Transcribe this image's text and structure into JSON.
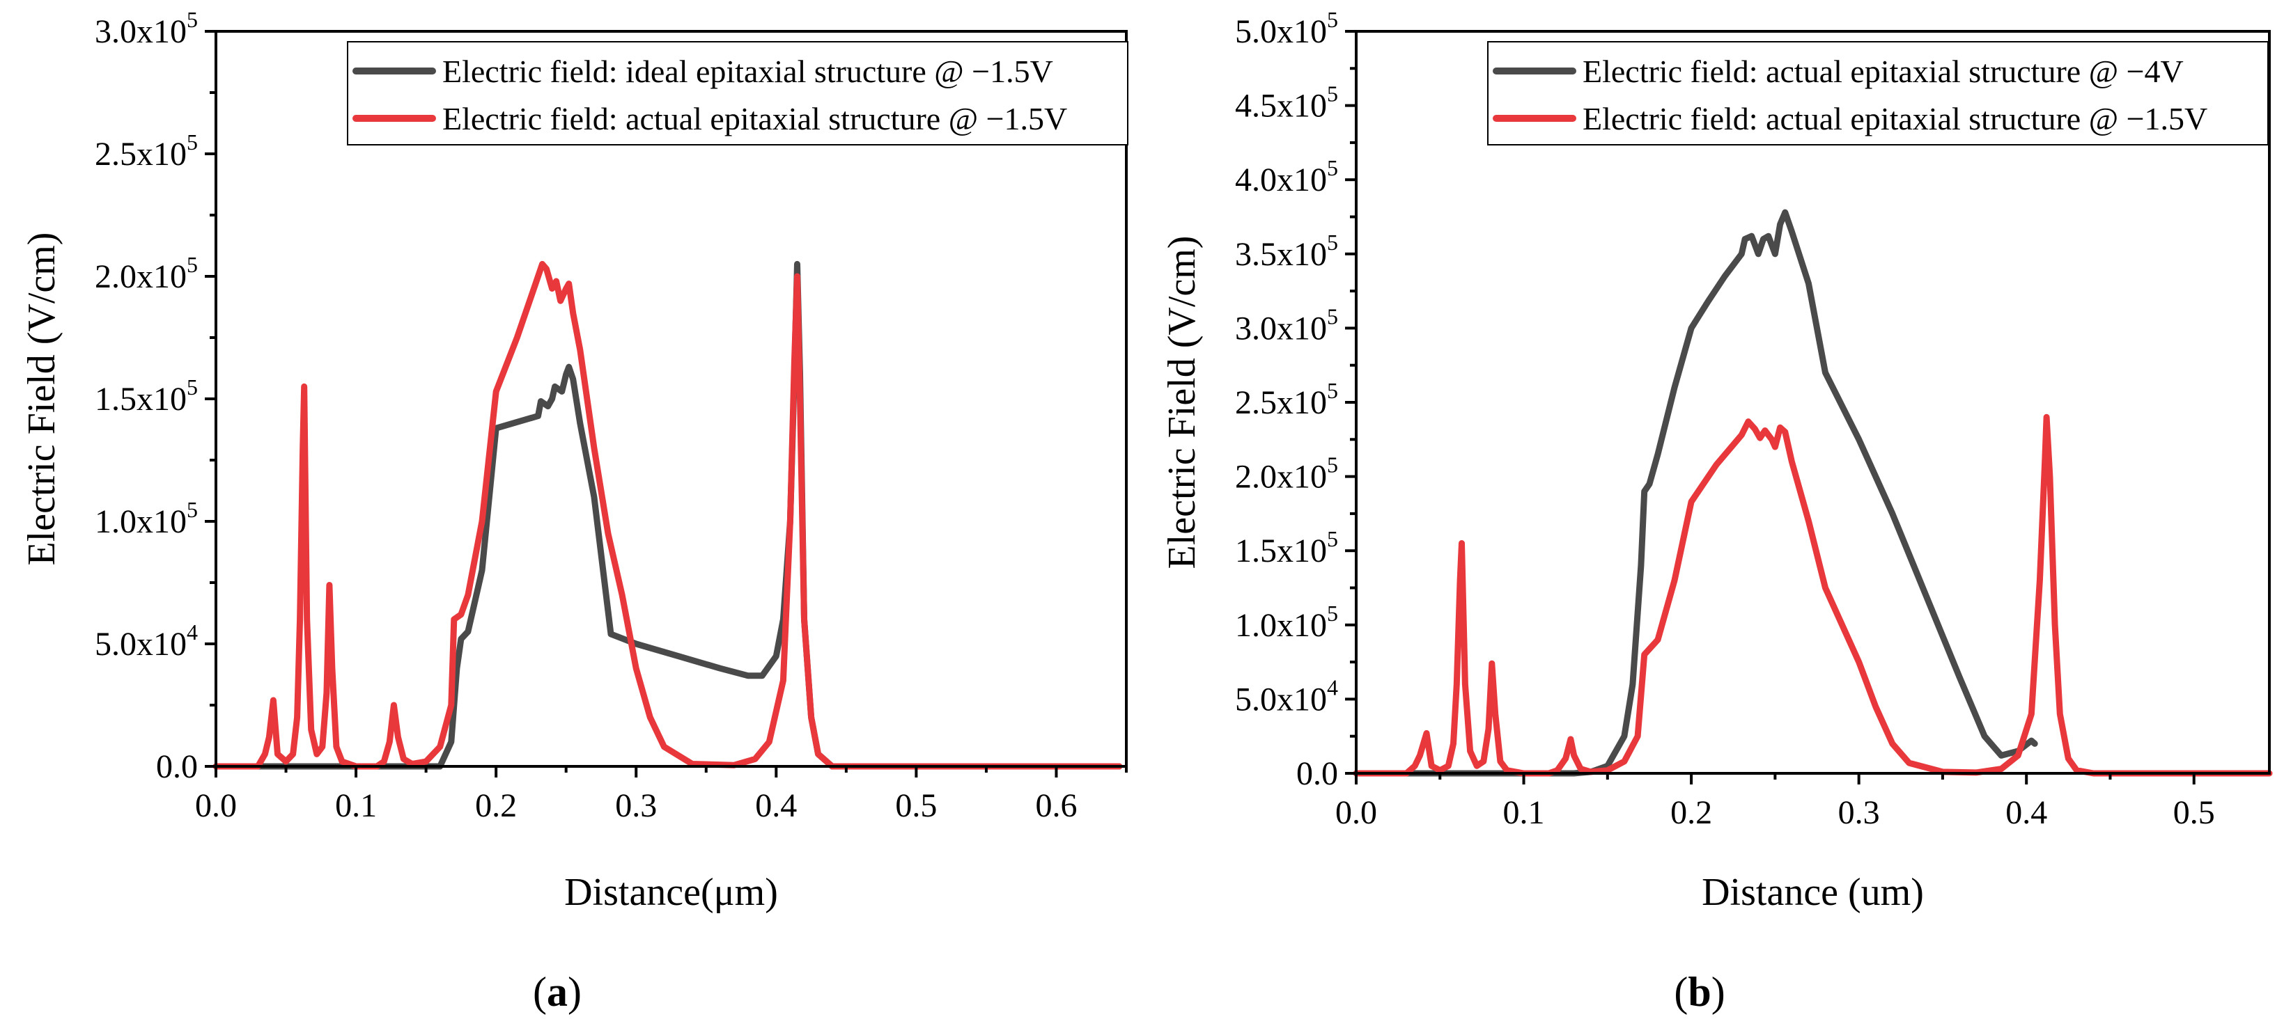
{
  "colors": {
    "dark_series": "#4a4a4a",
    "red_series": "#e8383c",
    "axis": "#000000"
  },
  "chart_data": [
    {
      "panel": "(a)",
      "type": "line",
      "title": "",
      "xlabel": "Distance(μm)",
      "ylabel": "Electric Field (V/cm)",
      "xlim": [
        0,
        0.65
      ],
      "ylim": [
        0,
        300000
      ],
      "xticks": [
        0.0,
        0.1,
        0.2,
        0.3,
        0.4,
        0.5,
        0.6
      ],
      "xtick_labels": [
        "0.0",
        "0.1",
        "0.2",
        "0.3",
        "0.4",
        "0.5",
        "0.6"
      ],
      "yticks": [
        {
          "value": 0,
          "mantissa": "0.0",
          "exponent": ""
        },
        {
          "value": 50000,
          "mantissa": "5.0x10",
          "exponent": "4"
        },
        {
          "value": 100000,
          "mantissa": "1.0x10",
          "exponent": "5"
        },
        {
          "value": 150000,
          "mantissa": "1.5x10",
          "exponent": "5"
        },
        {
          "value": 200000,
          "mantissa": "2.0x10",
          "exponent": "5"
        },
        {
          "value": 250000,
          "mantissa": "2.5x10",
          "exponent": "5"
        },
        {
          "value": 300000,
          "mantissa": "3.0x10",
          "exponent": "5"
        }
      ],
      "grid": false,
      "legend_position": "top-right",
      "series": [
        {
          "name": "Electric field: ideal epitaxial structure @ −1.5V",
          "color": "#4a4a4a",
          "points": [
            [
              0,
              0
            ],
            [
              0.16,
              0
            ],
            [
              0.168,
              10000
            ],
            [
              0.172,
              40000
            ],
            [
              0.175,
              52000
            ],
            [
              0.18,
              55000
            ],
            [
              0.19,
              80000
            ],
            [
              0.2,
              138000
            ],
            [
              0.23,
              143000
            ],
            [
              0.232,
              149000
            ],
            [
              0.237,
              147000
            ],
            [
              0.24,
              150000
            ],
            [
              0.242,
              155000
            ],
            [
              0.247,
              153000
            ],
            [
              0.25,
              160000
            ],
            [
              0.252,
              163000
            ],
            [
              0.255,
              158000
            ],
            [
              0.26,
              140000
            ],
            [
              0.27,
              110000
            ],
            [
              0.282,
              54000
            ],
            [
              0.3,
              50000
            ],
            [
              0.33,
              45000
            ],
            [
              0.36,
              40000
            ],
            [
              0.38,
              37000
            ],
            [
              0.39,
              37000
            ],
            [
              0.4,
              45000
            ],
            [
              0.405,
              60000
            ],
            [
              0.41,
              100000
            ],
            [
              0.413,
              160000
            ],
            [
              0.415,
              205000
            ],
            [
              0.417,
              160000
            ],
            [
              0.42,
              60000
            ],
            [
              0.425,
              20000
            ],
            [
              0.43,
              5000
            ],
            [
              0.44,
              0
            ],
            [
              0.645,
              0
            ]
          ]
        },
        {
          "name": "Electric field: actual epitaxial structure @ −1.5V",
          "color": "#e8383c",
          "points": [
            [
              0,
              0
            ],
            [
              0.03,
              0
            ],
            [
              0.035,
              5000
            ],
            [
              0.038,
              12000
            ],
            [
              0.041,
              27000
            ],
            [
              0.044,
              5000
            ],
            [
              0.05,
              2000
            ],
            [
              0.055,
              5000
            ],
            [
              0.058,
              20000
            ],
            [
              0.06,
              60000
            ],
            [
              0.062,
              130000
            ],
            [
              0.063,
              155000
            ],
            [
              0.065,
              60000
            ],
            [
              0.068,
              15000
            ],
            [
              0.072,
              5000
            ],
            [
              0.076,
              8000
            ],
            [
              0.079,
              30000
            ],
            [
              0.081,
              74000
            ],
            [
              0.083,
              40000
            ],
            [
              0.086,
              8000
            ],
            [
              0.09,
              2000
            ],
            [
              0.1,
              0
            ],
            [
              0.115,
              0
            ],
            [
              0.12,
              2000
            ],
            [
              0.124,
              10000
            ],
            [
              0.127,
              25000
            ],
            [
              0.13,
              12000
            ],
            [
              0.134,
              3000
            ],
            [
              0.14,
              1000
            ],
            [
              0.15,
              2000
            ],
            [
              0.16,
              8000
            ],
            [
              0.168,
              25000
            ],
            [
              0.17,
              60000
            ],
            [
              0.175,
              62000
            ],
            [
              0.18,
              70000
            ],
            [
              0.19,
              100000
            ],
            [
              0.2,
              153000
            ],
            [
              0.215,
              175000
            ],
            [
              0.23,
              200000
            ],
            [
              0.233,
              205000
            ],
            [
              0.236,
              203000
            ],
            [
              0.24,
              195000
            ],
            [
              0.243,
              198000
            ],
            [
              0.246,
              190000
            ],
            [
              0.25,
              195000
            ],
            [
              0.252,
              197000
            ],
            [
              0.255,
              185000
            ],
            [
              0.26,
              170000
            ],
            [
              0.27,
              130000
            ],
            [
              0.28,
              95000
            ],
            [
              0.29,
              70000
            ],
            [
              0.3,
              40000
            ],
            [
              0.31,
              20000
            ],
            [
              0.32,
              8000
            ],
            [
              0.34,
              1000
            ],
            [
              0.37,
              500
            ],
            [
              0.385,
              3000
            ],
            [
              0.395,
              10000
            ],
            [
              0.405,
              35000
            ],
            [
              0.41,
              100000
            ],
            [
              0.413,
              165000
            ],
            [
              0.415,
              200000
            ],
            [
              0.417,
              150000
            ],
            [
              0.42,
              60000
            ],
            [
              0.425,
              20000
            ],
            [
              0.43,
              5000
            ],
            [
              0.44,
              0
            ],
            [
              0.645,
              0
            ]
          ]
        }
      ]
    },
    {
      "panel": "(b)",
      "type": "line",
      "title": "",
      "xlabel": "Distance (um)",
      "ylabel": "Electric Field (V/cm)",
      "xlim": [
        0,
        0.545
      ],
      "ylim": [
        0,
        500000
      ],
      "xticks": [
        0.0,
        0.1,
        0.2,
        0.3,
        0.4,
        0.5
      ],
      "xtick_labels": [
        "0.0",
        "0.1",
        "0.2",
        "0.3",
        "0.4",
        "0.5"
      ],
      "yticks": [
        {
          "value": 0,
          "mantissa": "0.0",
          "exponent": ""
        },
        {
          "value": 50000,
          "mantissa": "5.0x10",
          "exponent": "4"
        },
        {
          "value": 100000,
          "mantissa": "1.0x10",
          "exponent": "5"
        },
        {
          "value": 150000,
          "mantissa": "1.5x10",
          "exponent": "5"
        },
        {
          "value": 200000,
          "mantissa": "2.0x10",
          "exponent": "5"
        },
        {
          "value": 250000,
          "mantissa": "2.5x10",
          "exponent": "5"
        },
        {
          "value": 300000,
          "mantissa": "3.0x10",
          "exponent": "5"
        },
        {
          "value": 350000,
          "mantissa": "3.5x10",
          "exponent": "5"
        },
        {
          "value": 400000,
          "mantissa": "4.0x10",
          "exponent": "5"
        },
        {
          "value": 450000,
          "mantissa": "4.5x10",
          "exponent": "5"
        },
        {
          "value": 500000,
          "mantissa": "5.0x10",
          "exponent": "5"
        }
      ],
      "grid": false,
      "legend_position": "top-right",
      "series": [
        {
          "name": "Electric field: actual epitaxial structure @ −4V",
          "color": "#4a4a4a",
          "points": [
            [
              0,
              0
            ],
            [
              0.13,
              0
            ],
            [
              0.14,
              1000
            ],
            [
              0.15,
              5000
            ],
            [
              0.16,
              25000
            ],
            [
              0.165,
              60000
            ],
            [
              0.17,
              140000
            ],
            [
              0.172,
              190000
            ],
            [
              0.175,
              195000
            ],
            [
              0.18,
              215000
            ],
            [
              0.19,
              260000
            ],
            [
              0.2,
              300000
            ],
            [
              0.21,
              318000
            ],
            [
              0.22,
              335000
            ],
            [
              0.23,
              350000
            ],
            [
              0.232,
              360000
            ],
            [
              0.236,
              362000
            ],
            [
              0.24,
              350000
            ],
            [
              0.243,
              360000
            ],
            [
              0.246,
              362000
            ],
            [
              0.25,
              350000
            ],
            [
              0.253,
              370000
            ],
            [
              0.256,
              378000
            ],
            [
              0.26,
              365000
            ],
            [
              0.27,
              330000
            ],
            [
              0.28,
              270000
            ],
            [
              0.3,
              225000
            ],
            [
              0.32,
              175000
            ],
            [
              0.34,
              120000
            ],
            [
              0.36,
              65000
            ],
            [
              0.375,
              25000
            ],
            [
              0.385,
              12000
            ],
            [
              0.395,
              15000
            ],
            [
              0.403,
              22000
            ],
            [
              0.405,
              20000
            ]
          ]
        },
        {
          "name": "Electric field: actual epitaxial structure @ −1.5V",
          "color": "#e8383c",
          "points": [
            [
              0,
              0
            ],
            [
              0.03,
              0
            ],
            [
              0.035,
              5000
            ],
            [
              0.038,
              12000
            ],
            [
              0.042,
              27000
            ],
            [
              0.045,
              5000
            ],
            [
              0.05,
              2000
            ],
            [
              0.055,
              5000
            ],
            [
              0.058,
              20000
            ],
            [
              0.06,
              60000
            ],
            [
              0.062,
              130000
            ],
            [
              0.063,
              155000
            ],
            [
              0.065,
              60000
            ],
            [
              0.068,
              15000
            ],
            [
              0.072,
              5000
            ],
            [
              0.076,
              8000
            ],
            [
              0.079,
              30000
            ],
            [
              0.081,
              74000
            ],
            [
              0.083,
              40000
            ],
            [
              0.086,
              8000
            ],
            [
              0.09,
              2000
            ],
            [
              0.1,
              0
            ],
            [
              0.115,
              0
            ],
            [
              0.12,
              2000
            ],
            [
              0.125,
              10000
            ],
            [
              0.128,
              23000
            ],
            [
              0.13,
              12000
            ],
            [
              0.134,
              3000
            ],
            [
              0.14,
              1000
            ],
            [
              0.15,
              2000
            ],
            [
              0.16,
              8000
            ],
            [
              0.168,
              25000
            ],
            [
              0.172,
              80000
            ],
            [
              0.18,
              90000
            ],
            [
              0.19,
              130000
            ],
            [
              0.2,
              183000
            ],
            [
              0.215,
              208000
            ],
            [
              0.23,
              228000
            ],
            [
              0.234,
              237000
            ],
            [
              0.238,
              232000
            ],
            [
              0.241,
              226000
            ],
            [
              0.244,
              231000
            ],
            [
              0.248,
              225000
            ],
            [
              0.25,
              220000
            ],
            [
              0.253,
              233000
            ],
            [
              0.256,
              230000
            ],
            [
              0.26,
              210000
            ],
            [
              0.27,
              170000
            ],
            [
              0.28,
              125000
            ],
            [
              0.3,
              75000
            ],
            [
              0.31,
              45000
            ],
            [
              0.32,
              20000
            ],
            [
              0.33,
              7000
            ],
            [
              0.35,
              1000
            ],
            [
              0.37,
              500
            ],
            [
              0.385,
              3000
            ],
            [
              0.395,
              12000
            ],
            [
              0.403,
              40000
            ],
            [
              0.408,
              130000
            ],
            [
              0.411,
              210000
            ],
            [
              0.412,
              240000
            ],
            [
              0.414,
              200000
            ],
            [
              0.417,
              100000
            ],
            [
              0.42,
              40000
            ],
            [
              0.425,
              10000
            ],
            [
              0.43,
              2000
            ],
            [
              0.44,
              0
            ],
            [
              0.545,
              0
            ]
          ]
        }
      ]
    }
  ]
}
